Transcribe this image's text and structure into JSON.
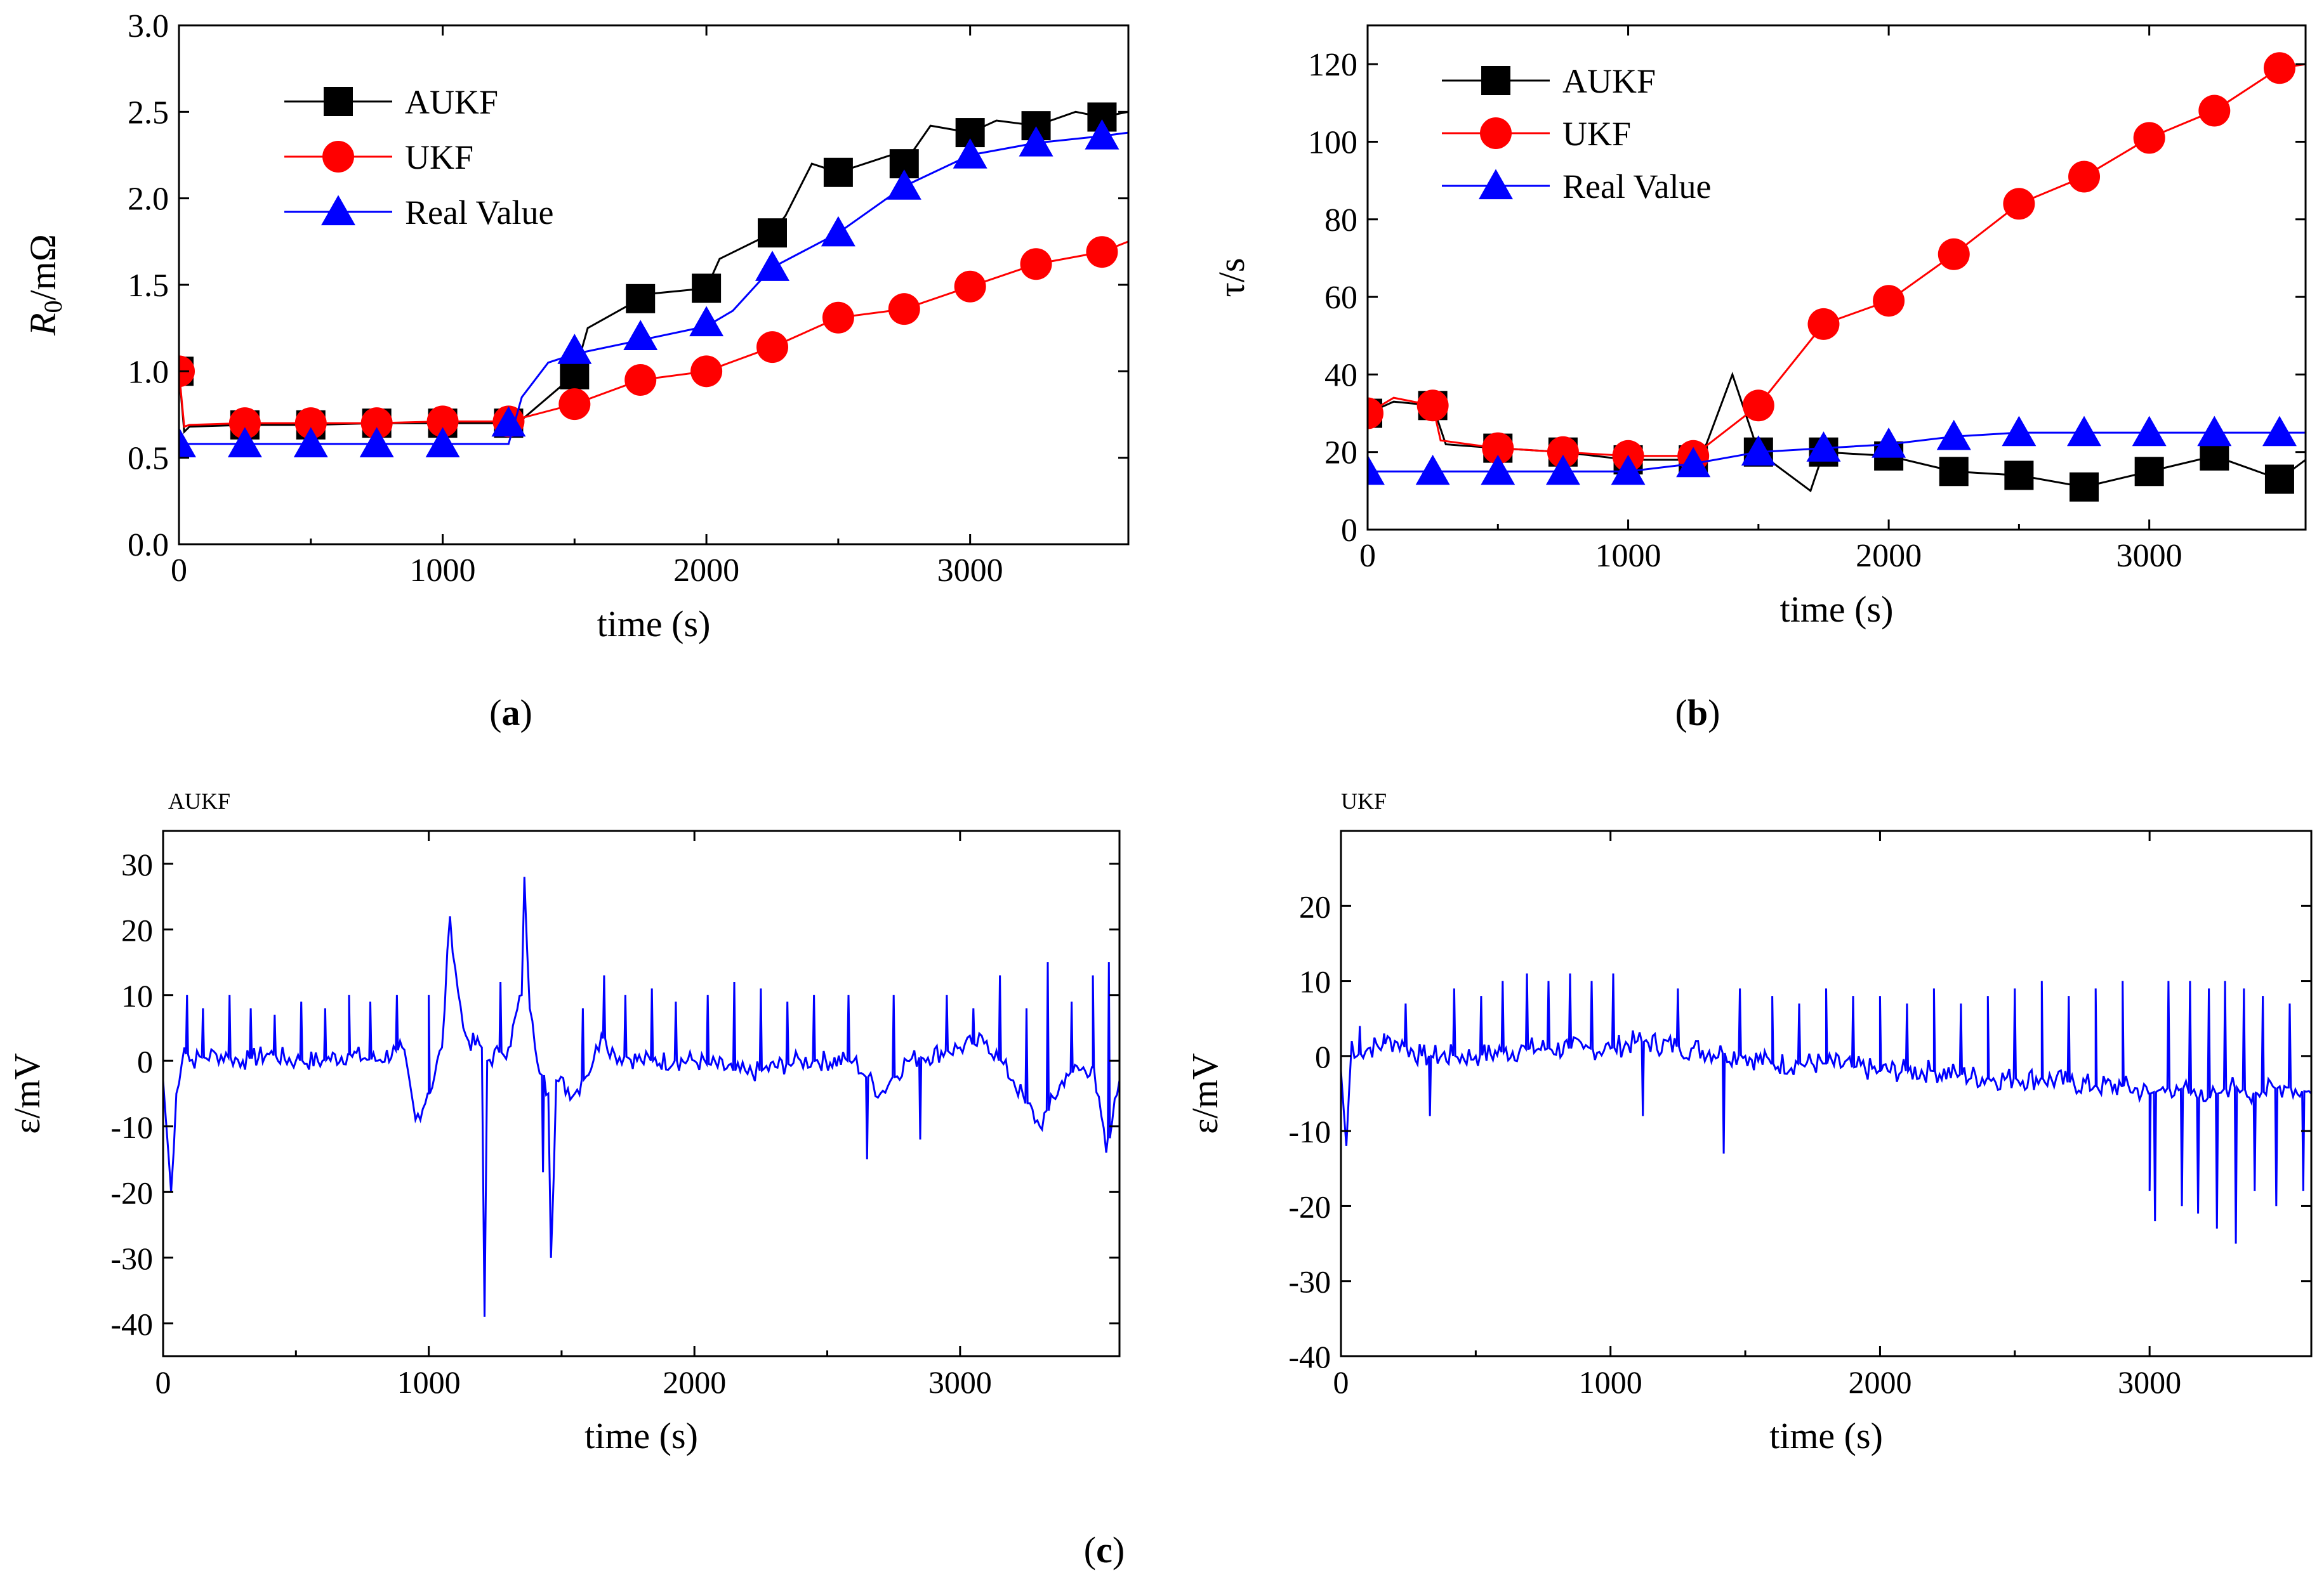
{
  "figure_captions": {
    "a": "a",
    "b": "b",
    "c": "c"
  },
  "chart_data": [
    {
      "id": "a",
      "type": "line",
      "ylabel_symbol": "R",
      "ylabel_subscript": "0",
      "ylabel_unit": "/mΩ",
      "xlabel": "time (s)",
      "xlim": [
        0,
        3600
      ],
      "ylim": [
        0.0,
        3.0
      ],
      "xticks": [
        "0",
        "1000",
        "2000",
        "3000"
      ],
      "xtick_values": [
        0,
        1000,
        2000,
        3000
      ],
      "yticks": [
        "0.0",
        "0.5",
        "1.0",
        "1.5",
        "2.0",
        "2.5",
        "3.0"
      ],
      "ytick_values": [
        0,
        0.5,
        1.0,
        1.5,
        2.0,
        2.5,
        3.0
      ],
      "legend_position": "top-left",
      "series": [
        {
          "name": "AUKF",
          "color": "#000000",
          "marker": "square",
          "x": [
            0,
            20,
            40,
            250,
            500,
            750,
            1000,
            1250,
            1300,
            1500,
            1550,
            1750,
            1800,
            2000,
            2050,
            2250,
            2300,
            2400,
            2500,
            2700,
            2750,
            2850,
            3000,
            3100,
            3250,
            3400,
            3500,
            3600
          ],
          "y": [
            1.0,
            0.65,
            0.68,
            0.69,
            0.69,
            0.7,
            0.7,
            0.7,
            0.72,
            0.98,
            1.25,
            1.42,
            1.45,
            1.48,
            1.65,
            1.8,
            1.9,
            2.2,
            2.15,
            2.25,
            2.2,
            2.42,
            2.38,
            2.45,
            2.42,
            2.5,
            2.47,
            2.5
          ],
          "markers_x": [
            0,
            250,
            500,
            750,
            1000,
            1250,
            1500,
            1750,
            2000,
            2250,
            2500,
            2750,
            3000,
            3250,
            3500
          ],
          "markers_y": [
            1.0,
            0.69,
            0.69,
            0.7,
            0.7,
            0.7,
            0.98,
            1.42,
            1.48,
            1.8,
            2.15,
            2.2,
            2.38,
            2.42,
            2.47
          ]
        },
        {
          "name": "UKF",
          "color": "#ff0000",
          "marker": "circle",
          "x": [
            0,
            20,
            40,
            250,
            500,
            750,
            1000,
            1250,
            1500,
            1750,
            2000,
            2250,
            2500,
            2750,
            3000,
            3250,
            3500,
            3600
          ],
          "y": [
            1.0,
            0.68,
            0.69,
            0.7,
            0.7,
            0.7,
            0.71,
            0.71,
            0.81,
            0.95,
            1.0,
            1.14,
            1.31,
            1.36,
            1.49,
            1.62,
            1.69,
            1.75
          ],
          "markers_x": [
            0,
            250,
            500,
            750,
            1000,
            1250,
            1500,
            1750,
            2000,
            2250,
            2500,
            2750,
            3000,
            3250,
            3500
          ],
          "markers_y": [
            1.0,
            0.7,
            0.7,
            0.7,
            0.71,
            0.71,
            0.81,
            0.95,
            1.0,
            1.14,
            1.31,
            1.36,
            1.49,
            1.62,
            1.69
          ]
        },
        {
          "name": "Real Value",
          "color": "#0000ff",
          "marker": "triangle",
          "x": [
            0,
            250,
            500,
            750,
            1000,
            1250,
            1300,
            1400,
            1500,
            1750,
            2000,
            2100,
            2250,
            2500,
            2750,
            3000,
            3250,
            3500,
            3600
          ],
          "y": [
            0.58,
            0.58,
            0.58,
            0.58,
            0.58,
            0.58,
            0.85,
            1.05,
            1.1,
            1.18,
            1.26,
            1.35,
            1.6,
            1.8,
            2.07,
            2.25,
            2.32,
            2.36,
            2.38
          ],
          "markers_x": [
            0,
            250,
            500,
            750,
            1000,
            1250,
            1500,
            1750,
            2000,
            2250,
            2500,
            2750,
            3000,
            3250,
            3500
          ],
          "markers_y": [
            0.58,
            0.58,
            0.58,
            0.58,
            0.58,
            0.7,
            1.12,
            1.2,
            1.28,
            1.6,
            1.8,
            2.07,
            2.25,
            2.32,
            2.36
          ]
        }
      ]
    },
    {
      "id": "b",
      "type": "line",
      "ylabel": "τ/s",
      "xlabel": "time (s)",
      "xlim": [
        0,
        3600
      ],
      "ylim": [
        0,
        130
      ],
      "xticks": [
        "0",
        "1000",
        "2000",
        "3000"
      ],
      "xtick_values": [
        0,
        1000,
        2000,
        3000
      ],
      "yticks": [
        "0",
        "20",
        "40",
        "60",
        "80",
        "100",
        "120"
      ],
      "ytick_values": [
        0,
        20,
        40,
        60,
        80,
        100,
        120
      ],
      "legend_position": "top-left",
      "series": [
        {
          "name": "AUKF",
          "color": "#000000",
          "marker": "square",
          "x": [
            0,
            100,
            250,
            300,
            500,
            750,
            1000,
            1250,
            1300,
            1400,
            1450,
            1500,
            1600,
            1700,
            1750,
            2000,
            2250,
            2500,
            2750,
            3000,
            3250,
            3500,
            3600
          ],
          "y": [
            30,
            33,
            32,
            22,
            21,
            20,
            18,
            18,
            22,
            40,
            30,
            20,
            15,
            10,
            20,
            19,
            15,
            14,
            11,
            15,
            19,
            13,
            18
          ],
          "markers_x": [
            0,
            250,
            500,
            750,
            1000,
            1250,
            1500,
            1750,
            2000,
            2250,
            2500,
            2750,
            3000,
            3250,
            3500
          ],
          "markers_y": [
            30,
            32,
            21,
            20,
            18,
            18,
            20,
            20,
            19,
            15,
            14,
            11,
            15,
            19,
            13
          ]
        },
        {
          "name": "UKF",
          "color": "#ff0000",
          "marker": "circle",
          "x": [
            0,
            100,
            250,
            280,
            500,
            750,
            1000,
            1250,
            1500,
            1750,
            2000,
            2250,
            2500,
            2750,
            3000,
            3250,
            3500,
            3600
          ],
          "y": [
            30,
            34,
            32,
            23,
            21,
            20,
            19,
            19,
            32,
            53,
            59,
            71,
            84,
            91,
            101,
            108,
            119,
            120
          ],
          "markers_x": [
            0,
            250,
            500,
            750,
            1000,
            1250,
            1500,
            1750,
            2000,
            2250,
            2500,
            2750,
            3000,
            3250,
            3500
          ],
          "markers_y": [
            30,
            32,
            21,
            20,
            19,
            19,
            32,
            53,
            59,
            71,
            84,
            91,
            101,
            108,
            119
          ]
        },
        {
          "name": "Real Value",
          "color": "#0000ff",
          "marker": "triangle",
          "x": [
            0,
            250,
            500,
            750,
            1000,
            1250,
            1500,
            1750,
            2000,
            2250,
            2500,
            2750,
            3000,
            3250,
            3500,
            3600
          ],
          "y": [
            15,
            15,
            15,
            15,
            15,
            17,
            20,
            21,
            22,
            24,
            25,
            25,
            25,
            25,
            25,
            25
          ],
          "markers_x": [
            0,
            250,
            500,
            750,
            1000,
            1250,
            1500,
            1750,
            2000,
            2250,
            2500,
            2750,
            3000,
            3250,
            3500
          ],
          "markers_y": [
            15,
            15,
            15,
            15,
            15,
            17,
            20,
            21,
            22,
            24,
            25,
            25,
            25,
            25,
            25
          ]
        }
      ]
    },
    {
      "id": "c-aukf",
      "type": "line",
      "title": "AUKF",
      "ylabel": "ε/mV",
      "xlabel": "time (s)",
      "xlim": [
        0,
        3600
      ],
      "ylim": [
        -45,
        35
      ],
      "xticks": [
        "0",
        "1000",
        "2000",
        "3000"
      ],
      "xtick_values": [
        0,
        1000,
        2000,
        3000
      ],
      "yticks": [
        "30",
        "20",
        "10",
        "0",
        "-10",
        "-20",
        "-30",
        "-40"
      ],
      "ytick_values": [
        30,
        20,
        10,
        0,
        -10,
        -20,
        -30,
        -40
      ],
      "series": [
        {
          "name": "AUKF",
          "color": "#0000ff",
          "x": [
            0,
            30,
            50,
            80,
            100,
            200,
            300,
            400,
            500,
            600,
            700,
            800,
            900,
            950,
            1000,
            1050,
            1080,
            1100,
            1130,
            1150,
            1200,
            1210,
            1220,
            1300,
            1350,
            1360,
            1380,
            1400,
            1450,
            1460,
            1480,
            1550,
            1620,
            1650,
            1700,
            1800,
            2000,
            2200,
            2400,
            2600,
            2700,
            2800,
            3000,
            3100,
            3200,
            3300,
            3400,
            3500,
            3550,
            3600
          ],
          "y": [
            -3,
            -20,
            -5,
            2,
            0,
            1,
            0,
            1,
            0,
            0,
            1,
            0,
            2,
            -9,
            -5,
            2,
            22,
            14,
            5,
            3,
            2,
            -39,
            0,
            2,
            10,
            28,
            8,
            2,
            -5,
            -30,
            -3,
            -5,
            0,
            4,
            1,
            0,
            0,
            -2,
            0,
            0,
            -5,
            0,
            2,
            3,
            -3,
            -10,
            -2,
            -1,
            -14,
            -3
          ],
          "spikes_x": [
            90,
            150,
            250,
            330,
            420,
            520,
            610,
            700,
            780,
            880,
            1000,
            1270,
            1430,
            1580,
            1660,
            1740,
            1840,
            1930,
            2050,
            2150,
            2250,
            2350,
            2450,
            2580,
            2650,
            2750,
            2850,
            2950,
            3050,
            3150,
            3250,
            3330,
            3420,
            3500,
            3560
          ],
          "spikes_y": [
            10,
            8,
            10,
            8,
            7,
            9,
            8,
            10,
            9,
            10,
            10,
            12,
            -17,
            8,
            13,
            10,
            11,
            9,
            10,
            12,
            11,
            9,
            10,
            10,
            -15,
            10,
            -12,
            10,
            8,
            13,
            8,
            15,
            9,
            13,
            15
          ]
        }
      ]
    },
    {
      "id": "c-ukf",
      "type": "line",
      "title": "UKF",
      "ylabel": "ε/mV",
      "xlabel": "time (s)",
      "xlim": [
        0,
        3600
      ],
      "ylim": [
        -40,
        30
      ],
      "xticks": [
        "0",
        "1000",
        "2000",
        "3000"
      ],
      "xtick_values": [
        0,
        1000,
        2000,
        3000
      ],
      "yticks": [
        "20",
        "10",
        "0",
        "-10",
        "-20",
        "-30",
        "-40"
      ],
      "ytick_values": [
        20,
        10,
        0,
        -10,
        -20,
        -30,
        -40
      ],
      "series": [
        {
          "name": "UKF",
          "color": "#0000ff",
          "x": [
            0,
            20,
            40,
            60,
            100,
            200,
            300,
            500,
            700,
            900,
            1000,
            1100,
            1300,
            1500,
            1600,
            1800,
            2000,
            2200,
            2400,
            2600,
            2800,
            2900,
            3000,
            3100,
            3200,
            3300,
            3400,
            3500,
            3600
          ],
          "y": [
            -2,
            -12,
            2,
            0,
            1,
            2,
            0,
            0,
            1,
            1,
            1,
            2,
            1,
            0,
            -1,
            -1,
            -2,
            -2,
            -3,
            -3,
            -4,
            -4,
            -5,
            -4,
            -6,
            -4,
            -5,
            -4,
            -5
          ],
          "spikes_x": [
            70,
            160,
            240,
            330,
            420,
            520,
            600,
            690,
            770,
            850,
            930,
            1010,
            1120,
            1250,
            1420,
            1480,
            1600,
            1700,
            1800,
            1900,
            2000,
            2100,
            2200,
            2300,
            2400,
            2500,
            2600,
            2700,
            2800,
            2900,
            3000,
            3020,
            3070,
            3120,
            3150,
            3180,
            3220,
            3250,
            3280,
            3320,
            3350,
            3390,
            3420,
            3470,
            3520,
            3570
          ],
          "spikes_y": [
            4,
            3,
            7,
            -8,
            9,
            8,
            10,
            11,
            10,
            11,
            10,
            11,
            -8,
            9,
            -13,
            9,
            8,
            7,
            9,
            8,
            8,
            7,
            9,
            7,
            8,
            9,
            10,
            8,
            9,
            10,
            -18,
            -22,
            10,
            -20,
            10,
            -21,
            9,
            -23,
            10,
            -25,
            9,
            -18,
            8,
            -20,
            7,
            -18
          ]
        }
      ]
    }
  ]
}
